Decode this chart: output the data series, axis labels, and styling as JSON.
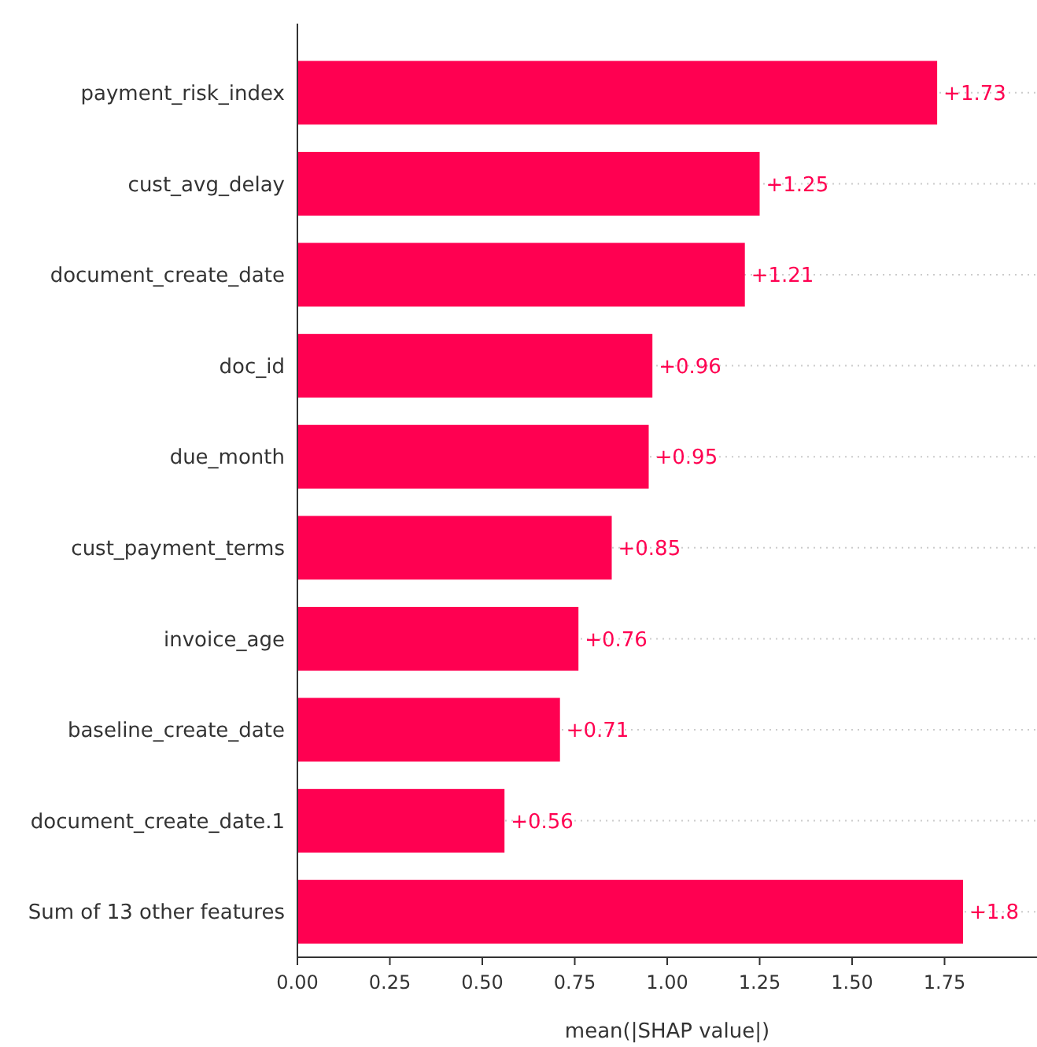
{
  "chart_data": {
    "type": "bar",
    "orientation": "horizontal",
    "xlabel": "mean(|SHAP value|)",
    "categories": [
      "payment_risk_index",
      "cust_avg_delay",
      "document_create_date",
      "doc_id",
      "due_month",
      "cust_payment_terms",
      "invoice_age",
      "baseline_create_date",
      "document_create_date.1",
      "Sum of 13 other features"
    ],
    "values": [
      1.73,
      1.25,
      1.21,
      0.96,
      0.95,
      0.85,
      0.76,
      0.71,
      0.56,
      1.8
    ],
    "value_labels": [
      "+1.73",
      "+1.25",
      "+1.21",
      "+0.96",
      "+0.95",
      "+0.85",
      "+0.76",
      "+0.71",
      "+0.56",
      "+1.8"
    ],
    "color": "#ff0051",
    "xlim": [
      0,
      2.0
    ],
    "xticks": [
      {
        "value": 0,
        "label": "0.00"
      },
      {
        "value": 0.25,
        "label": "0.25"
      },
      {
        "value": 0.5,
        "label": "0.50"
      },
      {
        "value": 0.75,
        "label": "0.75"
      },
      {
        "value": 1,
        "label": "1.00"
      },
      {
        "value": 1.25,
        "label": "1.25"
      },
      {
        "value": 1.5,
        "label": "1.50"
      },
      {
        "value": 1.75,
        "label": "1.75"
      }
    ],
    "grid": "y"
  }
}
